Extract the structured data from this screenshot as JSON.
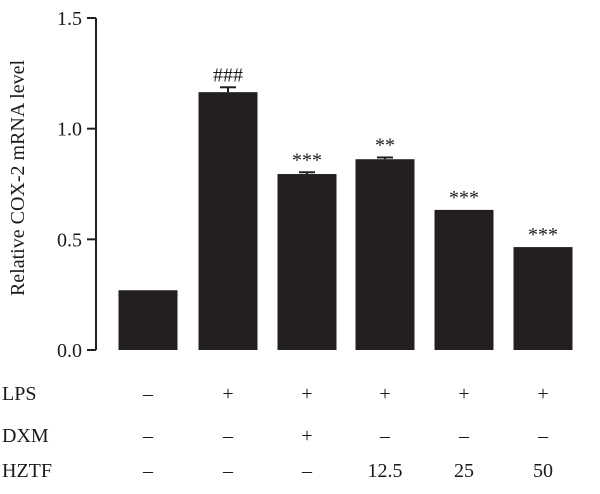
{
  "chart_data": {
    "type": "bar",
    "title": "",
    "xlabel": "",
    "ylabel": "Relative COX-2 mRNA level",
    "ylim": [
      0,
      1.5
    ],
    "yticks": [
      "0.0",
      "0.5",
      "1.0",
      "1.5"
    ],
    "ytick_values": [
      0,
      0.5,
      1.0,
      1.5
    ],
    "values": [
      0.27,
      1.165,
      0.795,
      0.862,
      0.633,
      0.465
    ],
    "errors": [
      0,
      0.022,
      0.008,
      0.008,
      0,
      0
    ],
    "annotations": [
      "",
      "###",
      "***",
      "**",
      "***",
      "***"
    ],
    "bar_color": "#231f20",
    "grid": false,
    "legend": "none",
    "conditions": [
      {
        "name": "LPS",
        "values": [
          "–",
          "+",
          "+",
          "+",
          "+",
          "+"
        ]
      },
      {
        "name": "DXM",
        "values": [
          "–",
          "–",
          "+",
          "–",
          "–",
          "–"
        ]
      },
      {
        "name": "HZTF",
        "values": [
          "–",
          "–",
          "–",
          "12.5",
          "25",
          "50"
        ]
      }
    ]
  }
}
